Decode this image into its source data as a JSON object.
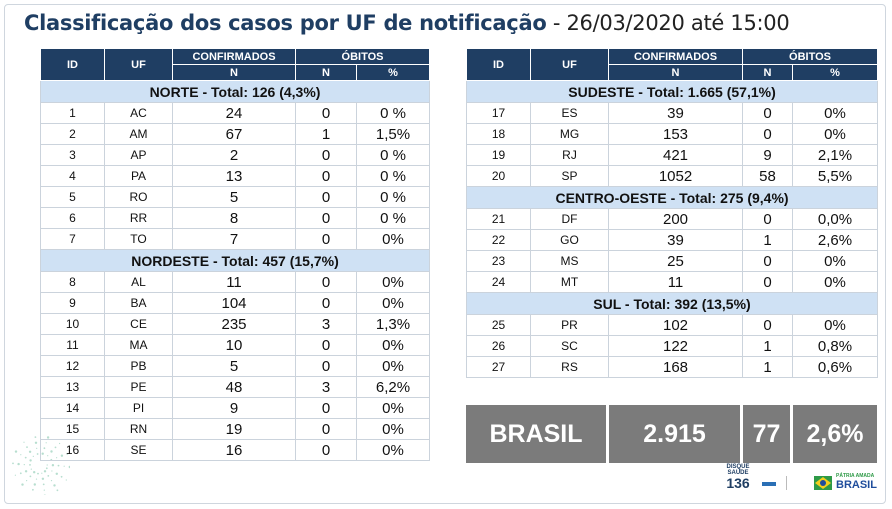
{
  "title": {
    "main": "Classificação dos casos por UF de notificação",
    "sub": " - 26/03/2020 até 15:00"
  },
  "headers": {
    "id": "ID",
    "uf": "UF",
    "confirmados": "CONFIRMADOS",
    "obitos": "ÓBITOS",
    "n": "N",
    "pct": "%"
  },
  "left": {
    "regions": [
      {
        "label": "NORTE - Total:  126 (4,3%)",
        "rows": [
          {
            "id": "1",
            "uf": "AC",
            "conf": "24",
            "obitos": "0",
            "pct": "0 %"
          },
          {
            "id": "2",
            "uf": "AM",
            "conf": "67",
            "obitos": "1",
            "pct": "1,5%"
          },
          {
            "id": "3",
            "uf": "AP",
            "conf": "2",
            "obitos": "0",
            "pct": "0 %"
          },
          {
            "id": "4",
            "uf": "PA",
            "conf": "13",
            "obitos": "0",
            "pct": "0 %"
          },
          {
            "id": "5",
            "uf": "RO",
            "conf": "5",
            "obitos": "0",
            "pct": "0 %"
          },
          {
            "id": "6",
            "uf": "RR",
            "conf": "8",
            "obitos": "0",
            "pct": "0 %"
          },
          {
            "id": "7",
            "uf": "TO",
            "conf": "7",
            "obitos": "0",
            "pct": "0%"
          }
        ]
      },
      {
        "label": "NORDESTE -  Total:  457  (15,7%)",
        "rows": [
          {
            "id": "8",
            "uf": "AL",
            "conf": "11",
            "obitos": "0",
            "pct": "0%"
          },
          {
            "id": "9",
            "uf": "BA",
            "conf": "104",
            "obitos": "0",
            "pct": "0%"
          },
          {
            "id": "10",
            "uf": "CE",
            "conf": "235",
            "obitos": "3",
            "pct": "1,3%"
          },
          {
            "id": "11",
            "uf": "MA",
            "conf": "10",
            "obitos": "0",
            "pct": "0%"
          },
          {
            "id": "12",
            "uf": "PB",
            "conf": "5",
            "obitos": "0",
            "pct": "0%"
          },
          {
            "id": "13",
            "uf": "PE",
            "conf": "48",
            "obitos": "3",
            "pct": "6,2%"
          },
          {
            "id": "14",
            "uf": "PI",
            "conf": "9",
            "obitos": "0",
            "pct": "0%"
          },
          {
            "id": "15",
            "uf": "RN",
            "conf": "19",
            "obitos": "0",
            "pct": "0%"
          },
          {
            "id": "16",
            "uf": "SE",
            "conf": "16",
            "obitos": "0",
            "pct": "0%"
          }
        ]
      }
    ]
  },
  "right": {
    "regions": [
      {
        "label": "SUDESTE - Total: 1.665 (57,1%)",
        "rows": [
          {
            "id": "17",
            "uf": "ES",
            "conf": "39",
            "obitos": "0",
            "pct": "0%"
          },
          {
            "id": "18",
            "uf": "MG",
            "conf": "153",
            "obitos": "0",
            "pct": "0%"
          },
          {
            "id": "19",
            "uf": "RJ",
            "conf": "421",
            "obitos": "9",
            "pct": "2,1%"
          },
          {
            "id": "20",
            "uf": "SP",
            "conf": "1052",
            "obitos": "58",
            "pct": "5,5%"
          }
        ]
      },
      {
        "label": "CENTRO-OESTE - Total:  275 (9,4%)",
        "rows": [
          {
            "id": "21",
            "uf": "DF",
            "conf": "200",
            "obitos": "0",
            "pct": "0,0%"
          },
          {
            "id": "22",
            "uf": "GO",
            "conf": "39",
            "obitos": "1",
            "pct": "2,6%"
          },
          {
            "id": "23",
            "uf": "MS",
            "conf": "25",
            "obitos": "0",
            "pct": "0%"
          },
          {
            "id": "24",
            "uf": "MT",
            "conf": "11",
            "obitos": "0",
            "pct": "0%"
          }
        ]
      },
      {
        "label": "SUL - Total: 392 (13,5%)",
        "rows": [
          {
            "id": "25",
            "uf": "PR",
            "conf": "102",
            "obitos": "0",
            "pct": "0%"
          },
          {
            "id": "26",
            "uf": "SC",
            "conf": "122",
            "obitos": "1",
            "pct": "0,8%"
          },
          {
            "id": "27",
            "uf": "RS",
            "conf": "168",
            "obitos": "1",
            "pct": "0,6%"
          }
        ]
      }
    ]
  },
  "brasil": {
    "label": "BRASIL",
    "conf": "2.915",
    "obitos": "77",
    "pct": "2,6%"
  },
  "logos": {
    "disque_top": "DISQUE",
    "disque_mid": "SAÚDE",
    "disque_num": "136",
    "gov": "BRASIL",
    "gov_top": "PÁTRIA AMADA"
  },
  "colors": {
    "header": "#1f3e63",
    "region": "#cfe1f4",
    "total": "#7b7b7b"
  }
}
